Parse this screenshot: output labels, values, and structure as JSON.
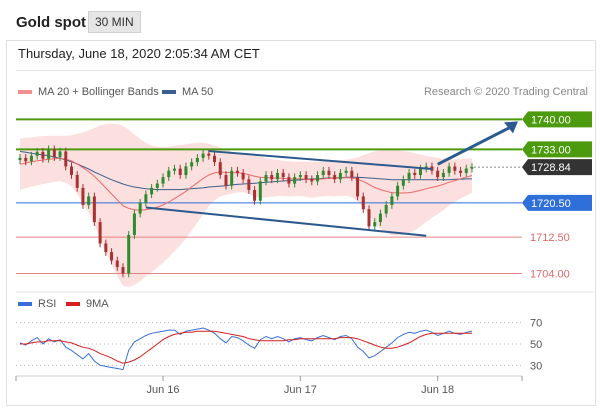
{
  "header": {
    "title": "Gold spot",
    "timeframe": "30 MIN",
    "datetime": "Thursday, June 18, 2020 2:05:34 AM CET"
  },
  "legend": {
    "bollinger_label": "MA 20 + Bollinger Bands",
    "ma50_label": "MA 50",
    "credit": "Research © 2020 Trading Central",
    "rsi_label": "RSI",
    "rsi_ma_label": "9MA"
  },
  "colors": {
    "resistance": "#4c9a0e",
    "support": "#2f6fd9",
    "pivot": "#2f6fd9",
    "minor_level": "#e06a6a",
    "current_price": "#333333",
    "trendline": "#2c5a8f",
    "bollinger_fill": "#fbd9d9",
    "ma20": "#e86a6a",
    "ma50": "#3a5f8f",
    "rsi": "#3a6fd9",
    "rsi_ma": "#d42020",
    "candle_up": "#2e8b2e",
    "candle_down": "#a83232"
  },
  "chart_data": {
    "type": "candlestick",
    "x_ticks": [
      "Jun 16",
      "Jun 17",
      "Jun 18"
    ],
    "ylim": [
      1702,
      1745
    ],
    "levels": [
      {
        "value": 1740.0,
        "label": "1740.00",
        "kind": "resistance"
      },
      {
        "value": 1733.0,
        "label": "1733.00",
        "kind": "resistance"
      },
      {
        "value": 1728.84,
        "label": "1728.84",
        "kind": "current_price"
      },
      {
        "value": 1720.5,
        "label": "1720.50",
        "kind": "pivot"
      },
      {
        "value": 1712.5,
        "label": "1712.50",
        "kind": "minor_level"
      },
      {
        "value": 1704.0,
        "label": "1704.00",
        "kind": "minor_level"
      }
    ],
    "trendlines": [
      {
        "from": [
          33,
          1732.6
        ],
        "to": [
          72,
          1728.4
        ]
      },
      {
        "from": [
          22,
          1719.4
        ],
        "to": [
          71,
          1712.8
        ]
      }
    ],
    "projection": {
      "from": [
        73,
        1729.5
      ],
      "to": [
        80,
        1740.0
      ]
    },
    "close": [
      1731.0,
      1730.2,
      1731.5,
      1732.4,
      1730.8,
      1733.0,
      1731.2,
      1732.5,
      1729.0,
      1727.0,
      1724.0,
      1720.0,
      1722.0,
      1716.0,
      1711.0,
      1709.0,
      1707.0,
      1705.5,
      1704.0,
      1713.0,
      1718.0,
      1720.5,
      1722.5,
      1724.0,
      1725.0,
      1726.5,
      1728.0,
      1728.5,
      1727.0,
      1729.0,
      1730.0,
      1731.0,
      1732.0,
      1731.5,
      1730.0,
      1727.0,
      1724.5,
      1728.0,
      1727.5,
      1726.0,
      1723.5,
      1721.0,
      1725.5,
      1727.0,
      1726.0,
      1727.5,
      1726.5,
      1725.0,
      1726.5,
      1727.0,
      1726.0,
      1725.5,
      1727.0,
      1728.0,
      1727.0,
      1726.0,
      1727.5,
      1728.0,
      1726.5,
      1722.0,
      1719.0,
      1715.0,
      1716.0,
      1718.0,
      1720.0,
      1722.0,
      1724.5,
      1726.0,
      1727.5,
      1727.0,
      1728.5,
      1729.0,
      1728.0,
      1726.5,
      1727.5,
      1729.0,
      1728.0,
      1727.5,
      1728.5,
      1728.84
    ],
    "ma20": [
      1729.5,
      1729.8,
      1730.1,
      1730.3,
      1730.5,
      1730.7,
      1730.8,
      1730.9,
      1730.7,
      1730.3,
      1729.6,
      1728.7,
      1727.8,
      1726.7,
      1725.4,
      1724.0,
      1722.6,
      1721.2,
      1719.8,
      1719.2,
      1718.9,
      1718.8,
      1718.9,
      1719.1,
      1719.5,
      1720.0,
      1720.7,
      1721.5,
      1722.3,
      1723.2,
      1724.2,
      1725.2,
      1726.2,
      1727.0,
      1727.5,
      1727.7,
      1727.6,
      1727.6,
      1727.5,
      1727.4,
      1727.1,
      1726.7,
      1726.5,
      1726.4,
      1726.3,
      1726.3,
      1726.2,
      1726.1,
      1726.1,
      1726.1,
      1726.0,
      1725.9,
      1726.0,
      1726.1,
      1726.2,
      1726.2,
      1726.3,
      1726.4,
      1726.3,
      1726.0,
      1725.5,
      1724.8,
      1724.1,
      1723.6,
      1723.2,
      1722.9,
      1722.8,
      1722.8,
      1722.9,
      1723.1,
      1723.4,
      1723.8,
      1724.1,
      1724.4,
      1724.8,
      1725.3,
      1725.7,
      1726.1,
      1726.5,
      1726.9
    ],
    "bb_upper": [
      1735.5,
      1735.7,
      1735.8,
      1736.0,
      1736.1,
      1736.2,
      1736.2,
      1736.2,
      1736.2,
      1736.3,
      1736.6,
      1737.0,
      1737.4,
      1738.0,
      1738.6,
      1738.9,
      1739.0,
      1738.9,
      1738.5,
      1737.6,
      1736.5,
      1735.4,
      1734.5,
      1733.9,
      1733.6,
      1733.5,
      1733.6,
      1733.8,
      1734.0,
      1734.2,
      1734.4,
      1734.5,
      1734.5,
      1734.3,
      1733.9,
      1733.4,
      1732.9,
      1732.5,
      1732.1,
      1731.8,
      1731.6,
      1731.5,
      1731.3,
      1731.0,
      1730.7,
      1730.5,
      1730.3,
      1730.2,
      1730.1,
      1730.1,
      1730.1,
      1730.1,
      1730.1,
      1730.2,
      1730.3,
      1730.4,
      1730.5,
      1730.6,
      1730.8,
      1731.1,
      1731.6,
      1732.1,
      1732.5,
      1732.8,
      1732.9,
      1732.9,
      1732.8,
      1732.6,
      1732.4,
      1732.1,
      1731.8,
      1731.5,
      1731.2,
      1731.0,
      1730.8,
      1730.7,
      1730.7,
      1730.7,
      1730.8,
      1730.9
    ],
    "bb_lower": [
      1723.5,
      1723.9,
      1724.3,
      1724.6,
      1724.9,
      1725.2,
      1725.4,
      1725.6,
      1725.2,
      1724.3,
      1722.6,
      1720.4,
      1718.2,
      1715.4,
      1712.2,
      1709.1,
      1706.2,
      1703.5,
      1701.1,
      1700.8,
      1701.3,
      1702.2,
      1703.3,
      1704.3,
      1705.4,
      1706.5,
      1707.8,
      1709.2,
      1710.6,
      1712.2,
      1714.0,
      1715.9,
      1717.9,
      1719.7,
      1721.1,
      1722.0,
      1722.3,
      1722.7,
      1722.9,
      1723.0,
      1722.6,
      1721.9,
      1721.7,
      1721.8,
      1721.9,
      1722.1,
      1722.1,
      1722.0,
      1722.1,
      1722.1,
      1721.9,
      1721.7,
      1721.9,
      1722.0,
      1722.1,
      1722.0,
      1722.1,
      1722.2,
      1721.8,
      1720.9,
      1719.4,
      1717.5,
      1715.7,
      1714.4,
      1713.5,
      1712.9,
      1712.8,
      1713.0,
      1713.4,
      1714.1,
      1715.0,
      1716.1,
      1717.0,
      1717.8,
      1718.8,
      1719.9,
      1720.7,
      1721.5,
      1722.2,
      1722.9
    ],
    "ma50": [
      1732.5,
      1732.3,
      1732.1,
      1731.9,
      1731.7,
      1731.5,
      1731.2,
      1730.9,
      1730.5,
      1730.1,
      1729.6,
      1729.0,
      1728.4,
      1727.7,
      1727.1,
      1726.5,
      1725.9,
      1725.4,
      1724.9,
      1724.5,
      1724.2,
      1724.0,
      1723.8,
      1723.7,
      1723.6,
      1723.6,
      1723.6,
      1723.6,
      1723.6,
      1723.7,
      1723.8,
      1723.9,
      1724.0,
      1724.2,
      1724.3,
      1724.4,
      1724.5,
      1724.7,
      1724.8,
      1724.9,
      1725.0,
      1725.1,
      1725.2,
      1725.3,
      1725.4,
      1725.5,
      1725.6,
      1725.7,
      1725.8,
      1725.9,
      1726.0,
      1726.1,
      1726.1,
      1726.2,
      1726.3,
      1726.3,
      1726.4,
      1726.5,
      1726.5,
      1726.5,
      1726.4,
      1726.3,
      1726.2,
      1726.1,
      1726.0,
      1725.9,
      1725.9,
      1725.9,
      1725.9,
      1725.9,
      1725.9,
      1725.9,
      1725.9,
      1725.9,
      1725.9,
      1725.9,
      1726.0,
      1726.0,
      1726.1,
      1726.1
    ],
    "rsi": {
      "ylim": [
        20,
        80
      ],
      "ticks": [
        70,
        50,
        30
      ],
      "rsi": [
        51,
        49,
        53,
        56,
        50,
        55,
        52,
        54,
        47,
        44,
        40,
        36,
        41,
        34,
        30,
        29,
        28,
        27,
        26,
        44,
        52,
        55,
        58,
        60,
        61,
        62,
        63,
        63,
        59,
        62,
        63,
        64,
        65,
        63,
        60,
        55,
        51,
        57,
        56,
        53,
        49,
        46,
        54,
        57,
        55,
        57,
        55,
        52,
        55,
        56,
        54,
        53,
        56,
        58,
        56,
        54,
        57,
        58,
        55,
        47,
        43,
        37,
        39,
        43,
        47,
        51,
        56,
        59,
        61,
        60,
        62,
        63,
        61,
        58,
        60,
        62,
        60,
        59,
        61,
        62
      ],
      "ma9": [
        50,
        50,
        51,
        52,
        52,
        53,
        53,
        53,
        52,
        51,
        49,
        47,
        46,
        44,
        41,
        39,
        37,
        34,
        32,
        33,
        35,
        38,
        42,
        46,
        50,
        54,
        57,
        59,
        60,
        61,
        61,
        62,
        62,
        62,
        62,
        61,
        60,
        59,
        58,
        57,
        55,
        54,
        53,
        53,
        53,
        53,
        53,
        54,
        54,
        55,
        55,
        55,
        55,
        55,
        55,
        55,
        56,
        56,
        56,
        55,
        53,
        51,
        49,
        47,
        46,
        46,
        47,
        49,
        51,
        54,
        57,
        59,
        60,
        60,
        60,
        60,
        60,
        60,
        60,
        60
      ]
    }
  }
}
